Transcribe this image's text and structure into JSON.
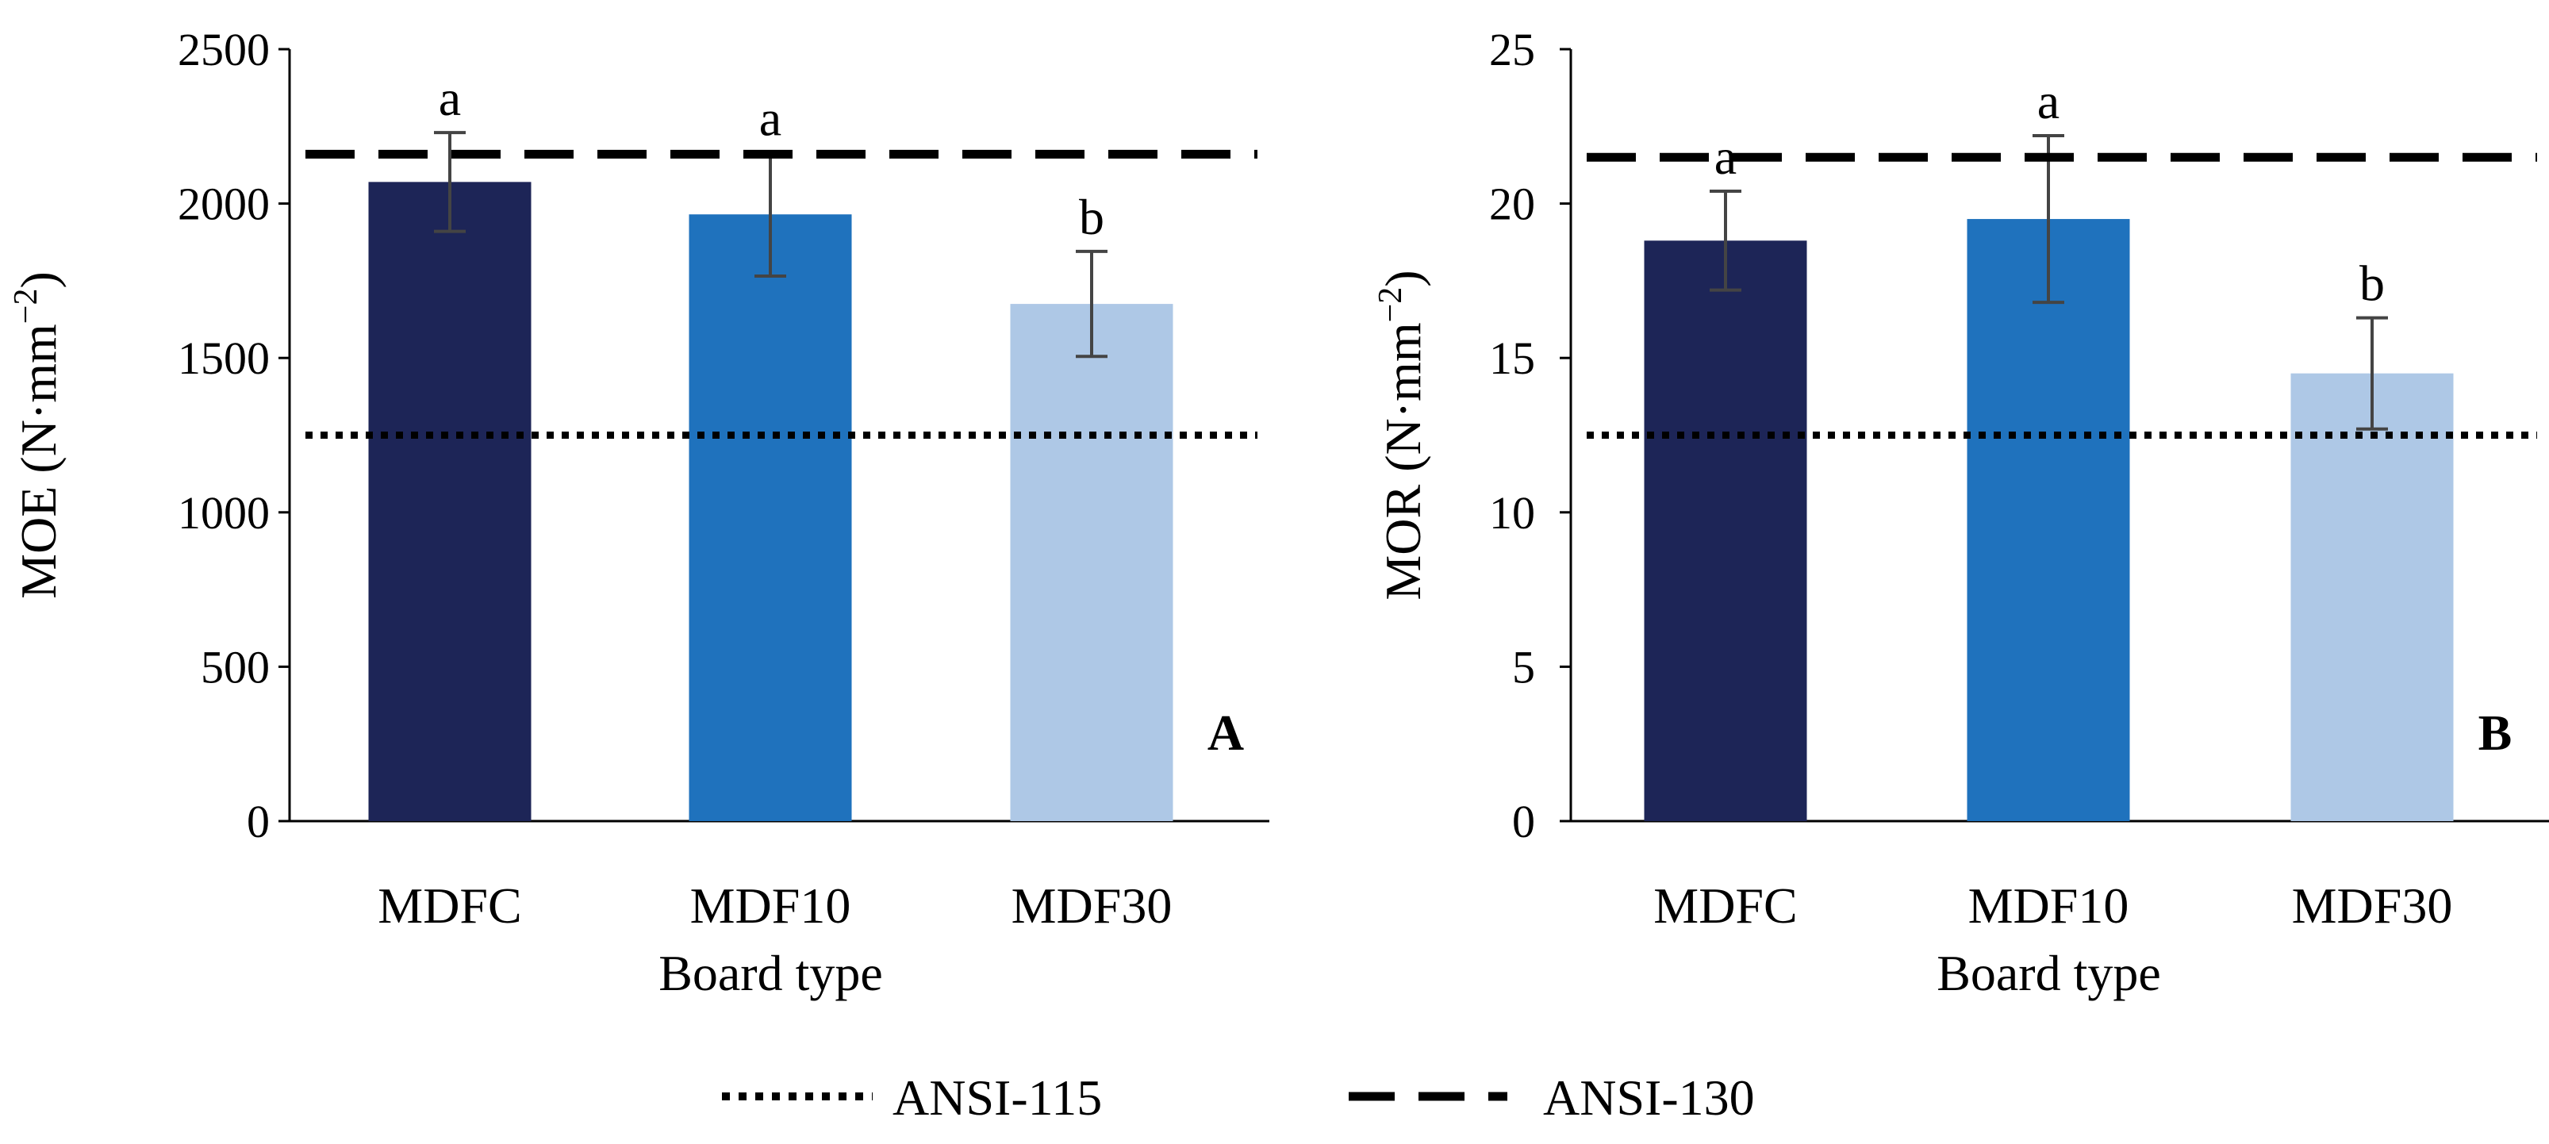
{
  "chart_data": [
    {
      "type": "bar",
      "panel_label": "A",
      "categories": [
        "MDFC",
        "MDF10",
        "MDF30"
      ],
      "values": [
        2070,
        1965,
        1675
      ],
      "error": [
        160,
        200,
        170
      ],
      "significance": [
        "a",
        "a",
        "b"
      ],
      "bar_colors": [
        "#1d2557",
        "#1f72bd",
        "#aec8e6"
      ],
      "xlabel": "Board type",
      "ylabel_main": "MOE (N·mm",
      "ylabel_sup": "−2",
      "ylabel_close": ")",
      "ylim": [
        0,
        2500
      ],
      "yticks": [
        0,
        500,
        1000,
        1500,
        2000,
        2500
      ],
      "reference_lines": [
        {
          "name": "ANSI-115",
          "value": 1250,
          "style": "dotted"
        },
        {
          "name": "ANSI-130",
          "value": 2160,
          "style": "dashed"
        }
      ],
      "grid": false
    },
    {
      "type": "bar",
      "panel_label": "B",
      "categories": [
        "MDFC",
        "MDF10",
        "MDF30"
      ],
      "values": [
        18.8,
        19.5,
        14.5
      ],
      "error": [
        1.6,
        2.7,
        1.8
      ],
      "significance": [
        "a",
        "a",
        "b"
      ],
      "bar_colors": [
        "#1d2557",
        "#1f72bd",
        "#aec8e6"
      ],
      "xlabel": "Board type",
      "ylabel_main": "MOR (N·mm",
      "ylabel_sup": "−2",
      "ylabel_close": ")",
      "ylim": [
        0,
        25
      ],
      "yticks": [
        0,
        5,
        10,
        15,
        20,
        25
      ],
      "reference_lines": [
        {
          "name": "ANSI-115",
          "value": 12.5,
          "style": "dotted"
        },
        {
          "name": "ANSI-130",
          "value": 21.5,
          "style": "dashed"
        }
      ],
      "grid": false
    }
  ],
  "legend": [
    {
      "label": "ANSI-115",
      "style": "dotted"
    },
    {
      "label": "ANSI-130",
      "style": "dashed"
    }
  ]
}
